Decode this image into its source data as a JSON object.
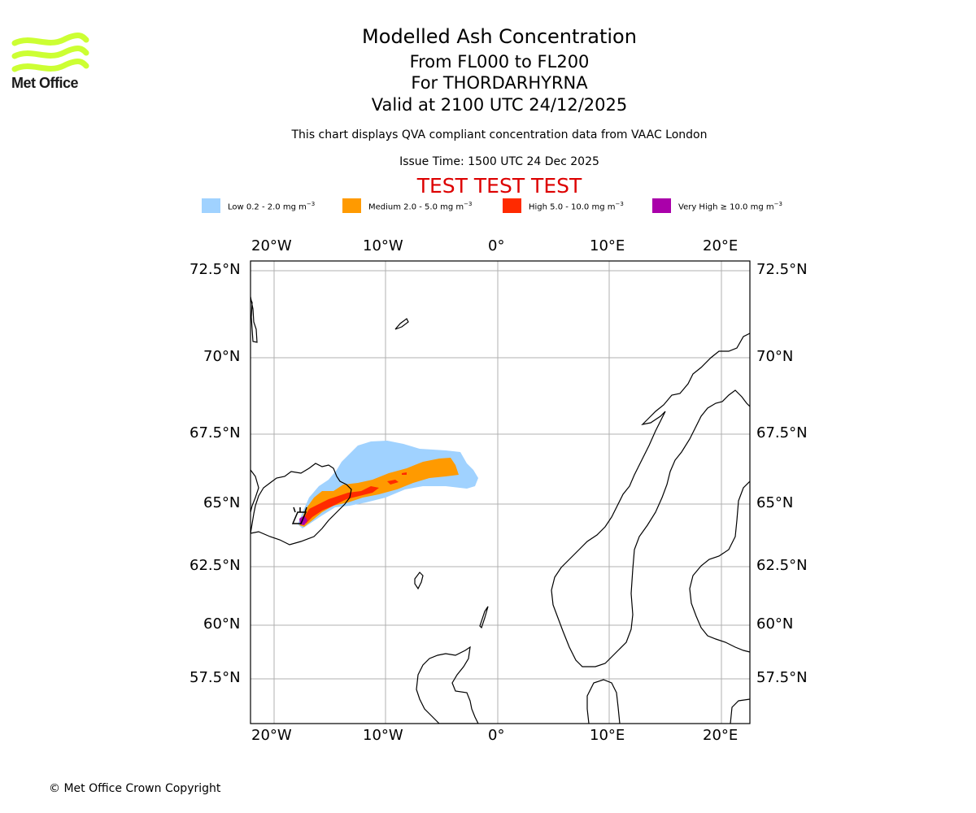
{
  "logo": {
    "text": "Met Office"
  },
  "titles": {
    "main": "Modelled Ash Concentration",
    "levels": "From FL000 to FL200",
    "volcano": "For THORDARHYRNA",
    "valid": "Valid at 2100 UTC 24/12/2025"
  },
  "subtitle": "This chart displays QVA compliant concentration data from VAAC London",
  "issue_time": "Issue Time: 1500 UTC 24 Dec 2025",
  "test_banner": "TEST TEST TEST",
  "legend": [
    {
      "label": "Low 0.2 - 2.0 mg m",
      "color": "#a0d2ff"
    },
    {
      "label": "Medium 2.0 - 5.0 mg m",
      "color": "#ff9a00"
    },
    {
      "label": "High 5.0 - 10.0 mg m",
      "color": "#ff2a00"
    },
    {
      "label": "Very High ≥ 10.0 mg m",
      "color": "#aa00aa"
    }
  ],
  "legend_unit_exponent": "−3",
  "map": {
    "lon_ticks": [
      "20°W",
      "10°W",
      "0°",
      "10°E",
      "20°E"
    ],
    "lat_ticks": [
      "72.5°N",
      "70°N",
      "67.5°N",
      "65°N",
      "62.5°N",
      "60°N",
      "57.5°N"
    ],
    "gridline_color": "#b0b0b0",
    "coastline_color": "#000000"
  },
  "copyright": "© Met Office Crown Copyright"
}
